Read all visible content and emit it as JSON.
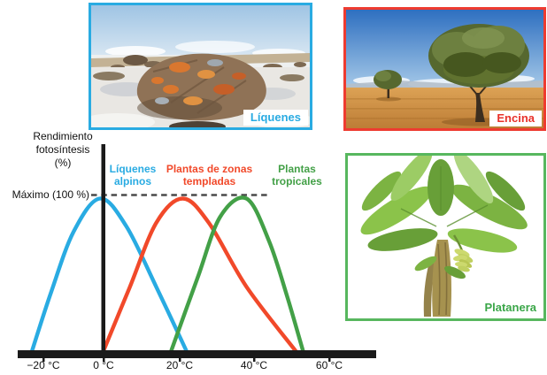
{
  "colors": {
    "cyan": "#29abe2",
    "red": "#f1492a",
    "green": "#43a047",
    "axis_black": "#1a1a1a",
    "dash_gray": "#4a4a4a",
    "photo_border_cyan": "#29abe2",
    "photo_border_red": "#ee3b30",
    "photo_border_green": "#57b75e"
  },
  "axis": {
    "ylabel_line1": "Rendimiento",
    "ylabel_line2": "fotosíntesis",
    "ylabel_line3": "(%)",
    "max_label": "Máximo (100 %)",
    "x_ticks": [
      "−20 °C",
      "0 °C",
      "20 °C",
      "40 °C",
      "60 °C"
    ]
  },
  "legend": {
    "lichens": {
      "line1": "Líquenes",
      "line2": "alpinos"
    },
    "temperate": {
      "line1": "Plantas de zonas",
      "line2": "templadas"
    },
    "tropical": {
      "line1": "Plantas",
      "line2": "tropicales"
    }
  },
  "photos": {
    "lichens": {
      "label": "Líquenes"
    },
    "oak": {
      "label": "Encina"
    },
    "banana": {
      "label": "Platanera"
    }
  },
  "chart_data": {
    "type": "line",
    "title": "",
    "ylabel": "Rendimiento fotosíntesis (%)",
    "xlabel": "",
    "x_unit": "°C",
    "xlim": [
      -25,
      70
    ],
    "ylim": [
      0,
      110
    ],
    "grid": false,
    "x_tick_values": [
      -20,
      0,
      20,
      40,
      60
    ],
    "x_tick_labels": [
      "−20 °C",
      "0 °C",
      "20 °C",
      "40 °C",
      "60 °C"
    ],
    "reference_line": {
      "label": "Máximo (100 %)",
      "y": 100,
      "style": "dashed"
    },
    "legend_position": "top-inline",
    "series": [
      {
        "name": "Líquenes alpinos",
        "color": "#29abe2",
        "points": [
          [
            -19,
            0
          ],
          [
            -14,
            38
          ],
          [
            -8,
            78
          ],
          [
            -1,
            100
          ],
          [
            6,
            82
          ],
          [
            14,
            42
          ],
          [
            22,
            0
          ]
        ]
      },
      {
        "name": "Plantas de zonas templadas",
        "color": "#f1492a",
        "points": [
          [
            0,
            0
          ],
          [
            7,
            42
          ],
          [
            14,
            84
          ],
          [
            21,
            100
          ],
          [
            28,
            84
          ],
          [
            38,
            42
          ],
          [
            51,
            0
          ]
        ]
      },
      {
        "name": "Plantas tropicales",
        "color": "#43a047",
        "points": [
          [
            18,
            0
          ],
          [
            25,
            48
          ],
          [
            31,
            88
          ],
          [
            38,
            100
          ],
          [
            44,
            72
          ],
          [
            49,
            34
          ],
          [
            53,
            0
          ]
        ]
      }
    ]
  }
}
